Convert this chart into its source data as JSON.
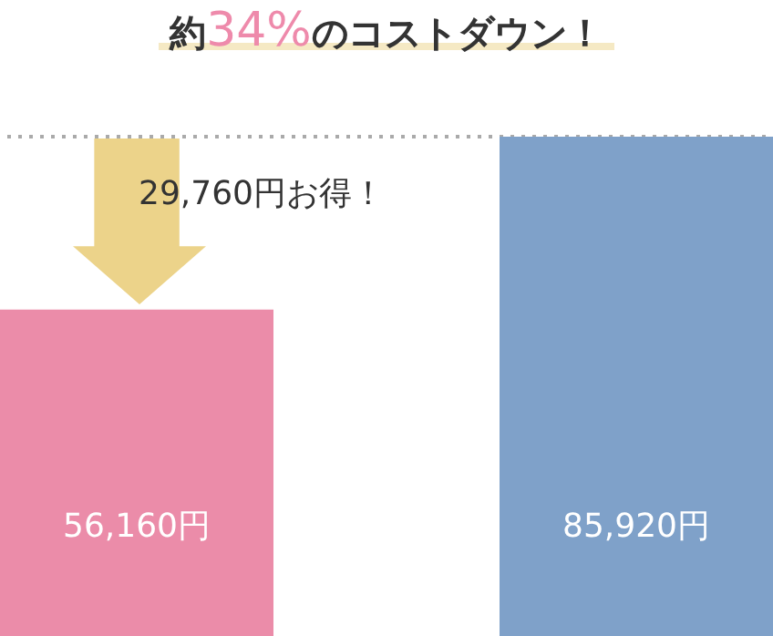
{
  "chart_data": {
    "type": "bar",
    "title": "約34%のコストダウン！",
    "categories": [
      null,
      null
    ],
    "values": [
      56160,
      85920
    ],
    "colors": [
      "#eb8ca9",
      "#7fa1c9"
    ],
    "value_labels": [
      "56,160円",
      "85,920円"
    ],
    "ylim": [
      0,
      85920
    ],
    "tick_labels": false,
    "legend": false,
    "ref_lines": [
      {
        "axis": "y",
        "value": 85920,
        "color": "#aaaaaa",
        "line_style": "dotted"
      }
    ],
    "annotations": [
      "29,760円お得！"
    ]
  }
}
